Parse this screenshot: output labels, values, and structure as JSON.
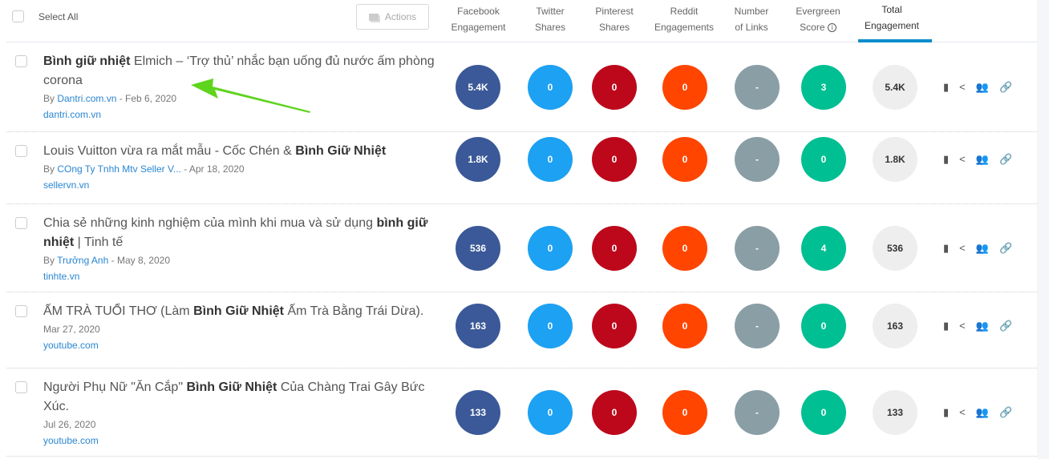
{
  "header": {
    "select_all": "Select All",
    "actions": "Actions",
    "columns": [
      {
        "l1": "Facebook",
        "l2": "Engagement"
      },
      {
        "l1": "Twitter",
        "l2": "Shares"
      },
      {
        "l1": "Pinterest",
        "l2": "Shares"
      },
      {
        "l1": "Reddit",
        "l2": "Engagements"
      },
      {
        "l1": "Number",
        "l2": "of Links"
      },
      {
        "l1": "Evergreen",
        "l2": "Score"
      },
      {
        "l1": "Total",
        "l2": "Engagement"
      }
    ],
    "active_column": "Total Engagement"
  },
  "colors": {
    "facebook": "#3b5998",
    "twitter": "#1da1f2",
    "pinterest": "#bd081c",
    "reddit": "#ff4500",
    "links": "#8a9ea6",
    "evergreen": "#00bf93",
    "total": "#eeeeee",
    "accent": "#0b8ccc",
    "arrow": "#5ed41c"
  },
  "rows": [
    {
      "title": [
        {
          "t": "Bình giữ nhiệt",
          "b": true
        },
        {
          "t": " Elmich – ‘Trợ thủ’ nhắc bạn uống đủ nước ấm phòng corona",
          "b": false
        }
      ],
      "by": "By ",
      "author": "Dantri.com.vn",
      "date": " - Feb 6, 2020",
      "domain": "dantri.com.vn",
      "values": [
        "5.4K",
        "0",
        "0",
        "0",
        "-",
        "3",
        "5.4K"
      ]
    },
    {
      "title": [
        {
          "t": "Louis Vuitton vừa ra mắt mẫu - Cốc Chén & ",
          "b": false
        },
        {
          "t": "Bình Giữ Nhiệt",
          "b": true
        }
      ],
      "by": "By ",
      "author": "COng Ty Tnhh Mtv Seller V...",
      "date": " - Apr 18, 2020",
      "domain": "sellervn.vn",
      "values": [
        "1.8K",
        "0",
        "0",
        "0",
        "-",
        "0",
        "1.8K"
      ]
    },
    {
      "title": [
        {
          "t": "Chia sẻ những kinh nghiệm của mình khi mua và sử dụng ",
          "b": false
        },
        {
          "t": "bình giữ nhiệt",
          "b": true
        },
        {
          "t": " | Tinh tế",
          "b": false
        }
      ],
      "by": "By ",
      "author": "Trưởng Anh",
      "date": " - May 8, 2020",
      "domain": "tinhte.vn",
      "values": [
        "536",
        "0",
        "0",
        "0",
        "-",
        "4",
        "536"
      ]
    },
    {
      "title": [
        {
          "t": "ẤM TRÀ TUỔI THƠ (Làm ",
          "b": false
        },
        {
          "t": "Bình Giữ Nhiệt",
          "b": true
        },
        {
          "t": " Ấm Trà Bằng Trái Dừa).",
          "b": false
        }
      ],
      "by": "",
      "author": "",
      "date": "Mar 27, 2020",
      "domain": "youtube.com",
      "values": [
        "163",
        "0",
        "0",
        "0",
        "-",
        "0",
        "163"
      ]
    },
    {
      "title": [
        {
          "t": "Người Phụ Nữ \"Ăn Cắp\" ",
          "b": false
        },
        {
          "t": "Bình Giữ Nhiệt",
          "b": true
        },
        {
          "t": " Của Chàng Trai Gây Bức Xúc.",
          "b": false
        }
      ],
      "by": "",
      "author": "",
      "date": "Jul 26, 2020",
      "domain": "youtube.com",
      "values": [
        "133",
        "0",
        "0",
        "0",
        "-",
        "0",
        "133"
      ]
    }
  ]
}
